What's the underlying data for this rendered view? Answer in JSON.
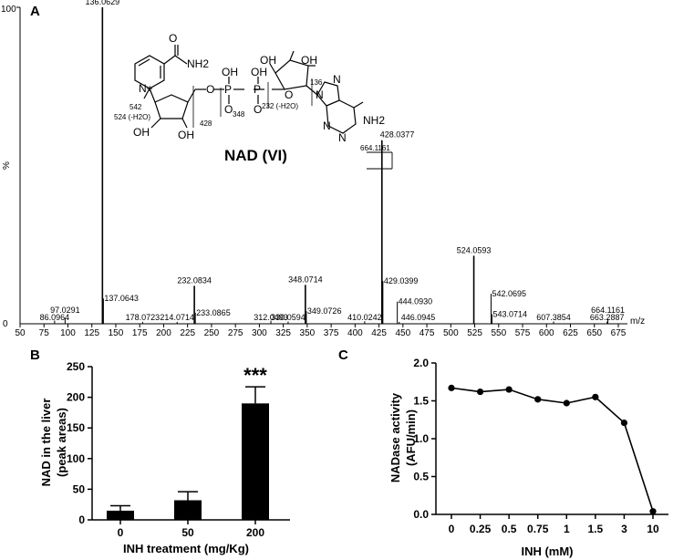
{
  "chart_data": [
    {
      "panel": "A",
      "type": "bar",
      "ylabel": "%",
      "xlabel": "m/z",
      "xlim": [
        50,
        675
      ],
      "ylim": [
        0,
        100
      ],
      "x_ticks": [
        50,
        75,
        100,
        125,
        150,
        175,
        200,
        225,
        250,
        275,
        300,
        325,
        350,
        375,
        400,
        425,
        450,
        475,
        500,
        525,
        550,
        575,
        600,
        625,
        650,
        675
      ],
      "y_ticks": [
        0,
        100
      ],
      "peaks": [
        {
          "mz": 86.0964,
          "intensity": 1.0,
          "label": "86.0964"
        },
        {
          "mz": 97.0291,
          "intensity": 1.8,
          "label": "97.0291"
        },
        {
          "mz": 136.0629,
          "intensity": 100,
          "label": "136.0629"
        },
        {
          "mz": 137.0643,
          "intensity": 8.0,
          "label": "137.0643"
        },
        {
          "mz": 178.0723,
          "intensity": 0.6,
          "label": "178.0723"
        },
        {
          "mz": 214.0714,
          "intensity": 0.6,
          "label": "214.0714"
        },
        {
          "mz": 232.0834,
          "intensity": 12.0,
          "label": "232.0834"
        },
        {
          "mz": 233.0865,
          "intensity": 3.5,
          "label": "233.0865"
        },
        {
          "mz": 312.0493,
          "intensity": 1.0,
          "label": "312.0493"
        },
        {
          "mz": 330.0594,
          "intensity": 0.7,
          "label": "330.0594"
        },
        {
          "mz": 348.0714,
          "intensity": 12.3,
          "label": "348.0714"
        },
        {
          "mz": 349.0726,
          "intensity": 4.0,
          "label": "349.0726"
        },
        {
          "mz": 410.0242,
          "intensity": 0.8,
          "label": "410.0242"
        },
        {
          "mz": 428.0377,
          "intensity": 58.0,
          "label": "428.0377"
        },
        {
          "mz": 429.0399,
          "intensity": 13.5,
          "label": "429.0399"
        },
        {
          "mz": 444.093,
          "intensity": 7.0,
          "label": "444.0930"
        },
        {
          "mz": 446.0945,
          "intensity": 0.6,
          "label": "446.0945"
        },
        {
          "mz": 524.0593,
          "intensity": 21.5,
          "label": "524.0593"
        },
        {
          "mz": 542.0695,
          "intensity": 9.5,
          "label": "542.0695"
        },
        {
          "mz": 543.0714,
          "intensity": 3.0,
          "label": "543.0714"
        },
        {
          "mz": 607.3854,
          "intensity": 0.7,
          "label": "607.3854"
        },
        {
          "mz": 663.2887,
          "intensity": 0.7,
          "label": "663.2887"
        },
        {
          "mz": 664.1161,
          "intensity": 1.5,
          "label": "664.1161"
        }
      ],
      "structure_label": "NAD (VI)",
      "structure_atoms": [
        "O",
        "NH2",
        "N+",
        "O",
        "P",
        "P",
        "OH",
        "OH",
        "O",
        "O",
        "O",
        "OH",
        "OH",
        "OH",
        "OH",
        "N",
        "N",
        "N",
        "N",
        "NH2"
      ],
      "structure_fragments": [
        "136",
        "542",
        "524 (-H2O)",
        "428",
        "348",
        "232 (-H2O)",
        "664.1161"
      ]
    },
    {
      "panel": "B",
      "type": "bar",
      "categories": [
        "0",
        "50",
        "200"
      ],
      "values": [
        15,
        32,
        190
      ],
      "errors": [
        8,
        14,
        27
      ],
      "annotations": [
        "",
        "",
        "***"
      ],
      "ylabel": "NAD in the liver (peak areas)",
      "ylabel_lines": [
        "NAD in the liver",
        "(peak areas)"
      ],
      "xlabel": "INH treatment (mg/Kg)",
      "ylim": [
        0,
        250
      ],
      "y_ticks": [
        0,
        50,
        100,
        150,
        200,
        250
      ],
      "bar_color": "#000000"
    },
    {
      "panel": "C",
      "type": "line",
      "categories": [
        "0",
        "0.25",
        "0.5",
        "0.75",
        "1",
        "1.5",
        "3",
        "10"
      ],
      "values": [
        1.67,
        1.62,
        1.65,
        1.52,
        1.47,
        1.55,
        1.21,
        0.04
      ],
      "ylabel": "NADase activity (AFU/min)",
      "ylabel_lines": [
        "NADase activity",
        "(AFU/min)"
      ],
      "xlabel": "INH (mM)",
      "ylim": [
        0,
        2.0
      ],
      "y_ticks": [
        "0.0",
        "0.5",
        "1.0",
        "1.5",
        "2.0"
      ],
      "line_color": "#000000"
    }
  ]
}
